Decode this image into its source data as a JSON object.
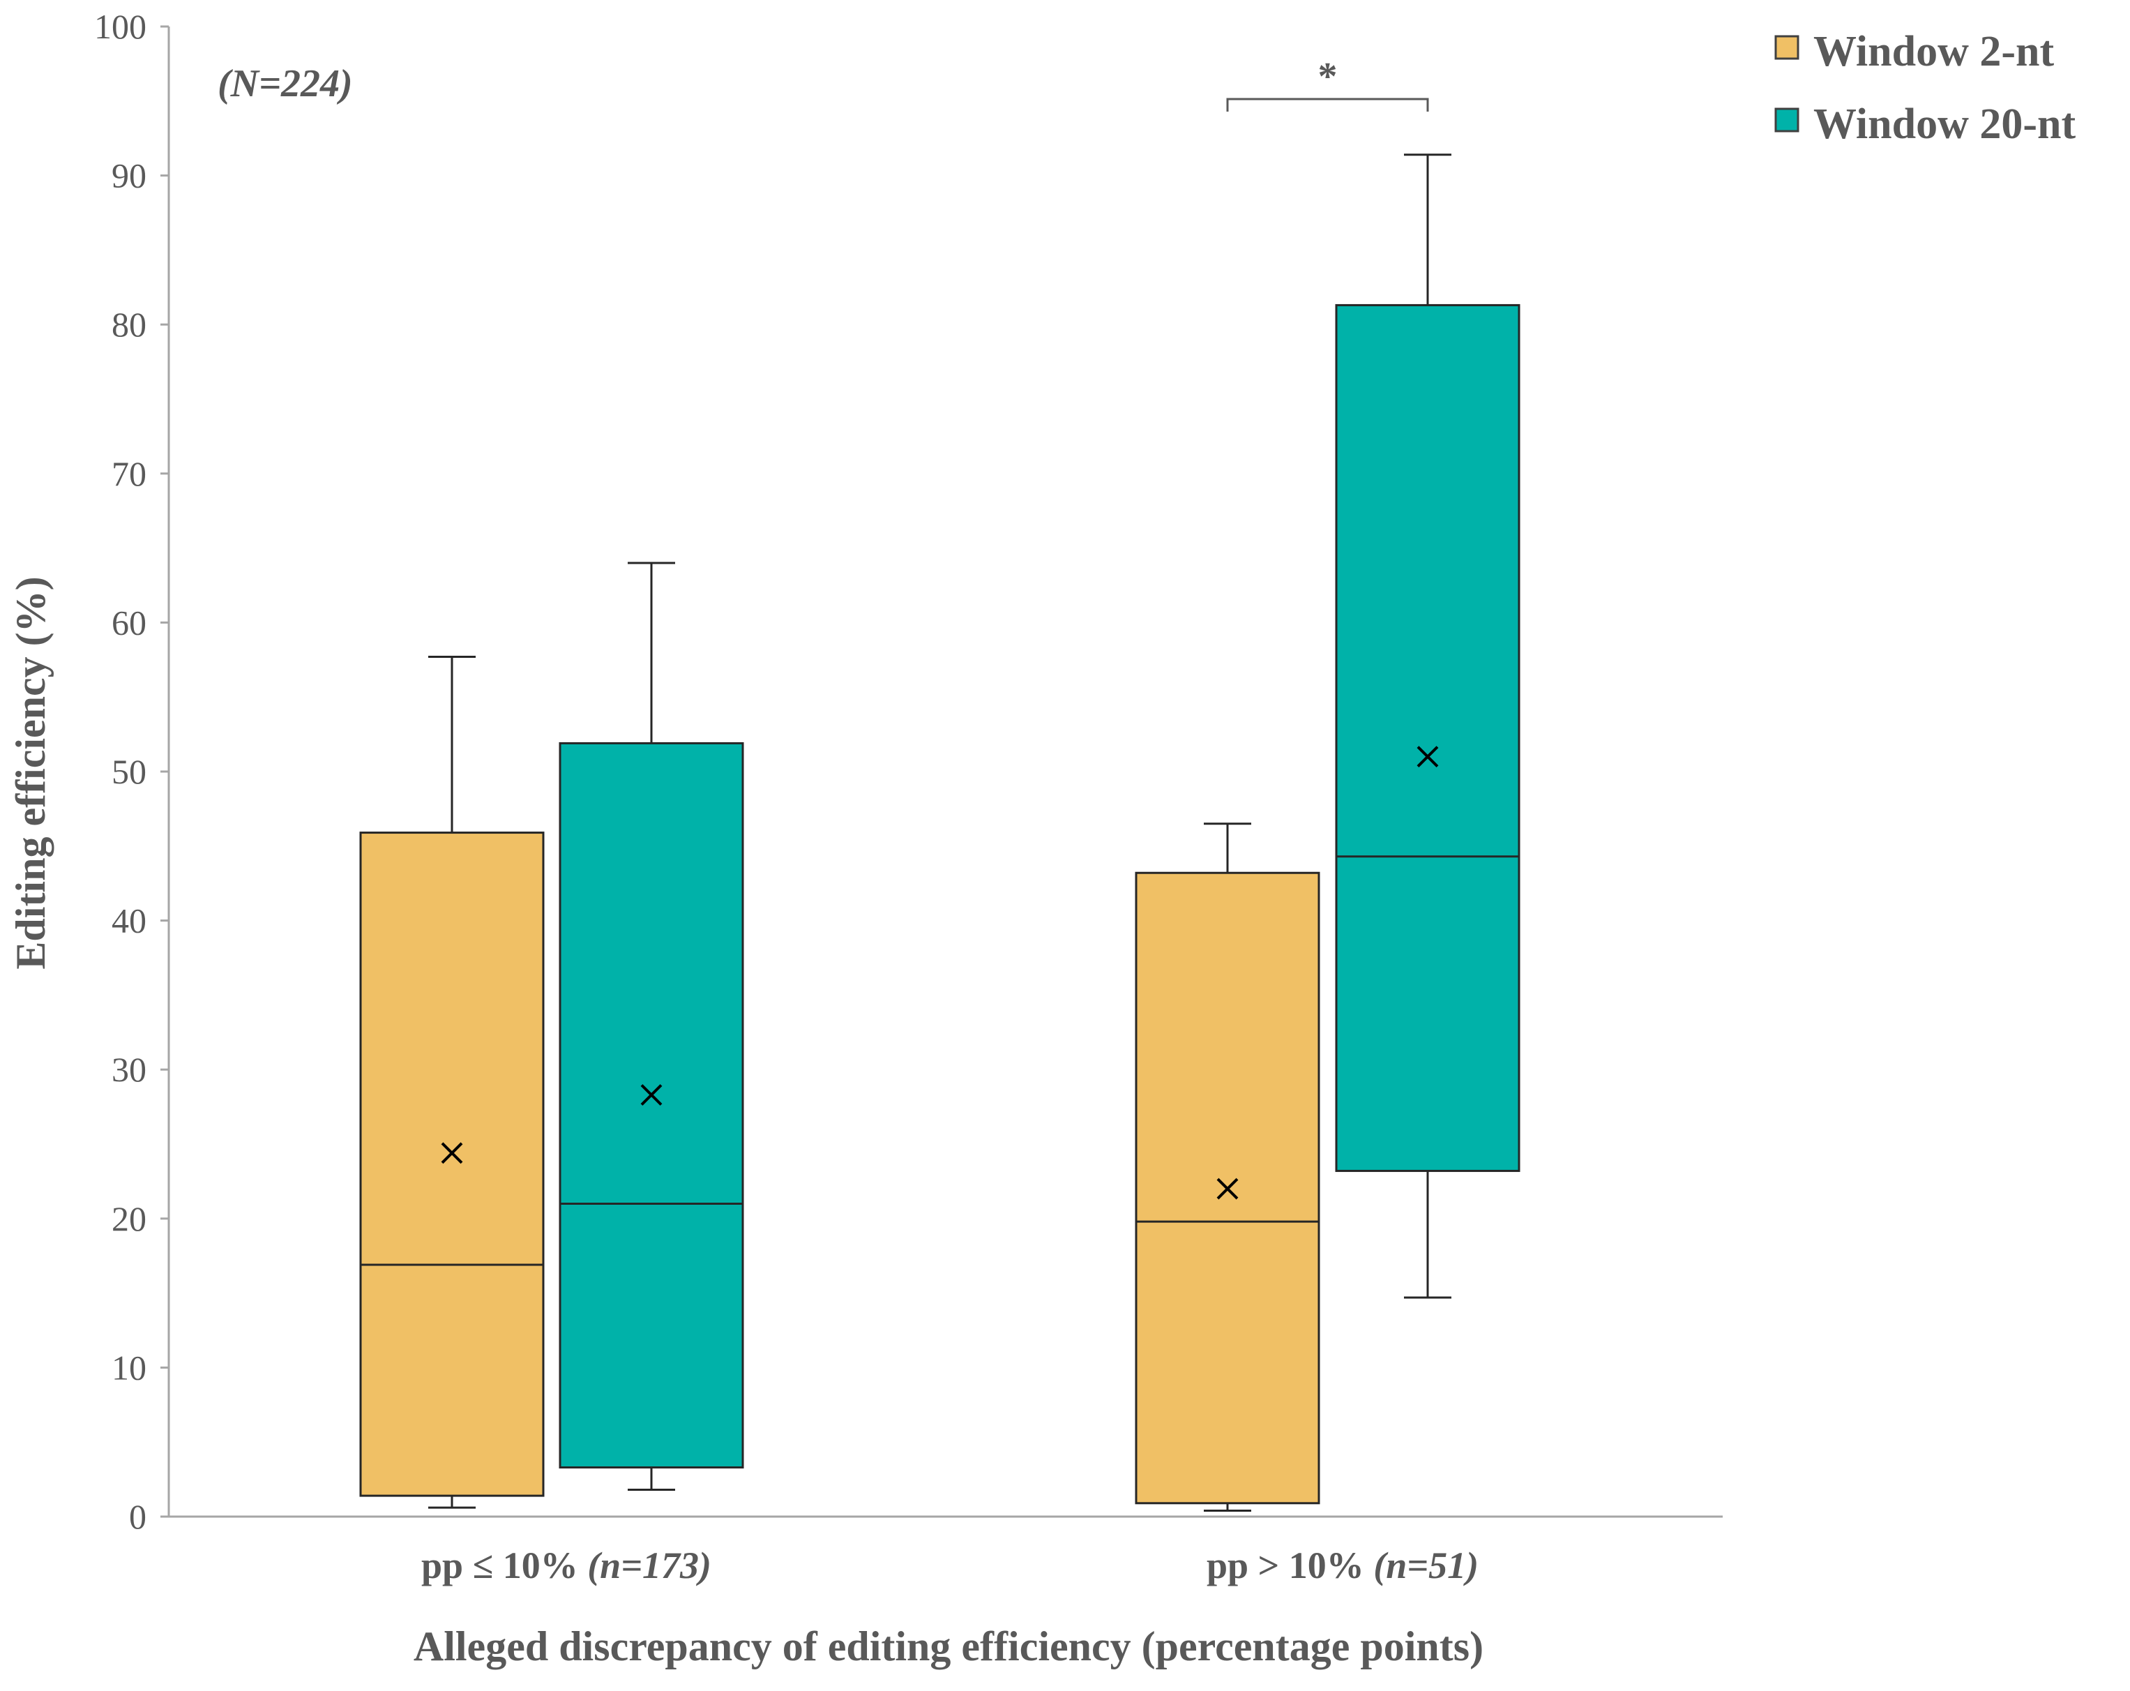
{
  "chart_data": {
    "type": "boxplot",
    "title": "",
    "annotation": "(N=224)",
    "xlabel": "Alleged discrepancy  of editing efficiency (percentage points)",
    "ylabel": "Editing efficiency (%)",
    "ylim": [
      0,
      100
    ],
    "yticks": [
      0,
      10,
      20,
      30,
      40,
      50,
      60,
      70,
      80,
      90,
      100
    ],
    "grid": false,
    "legend_position": "top-right",
    "categories": [
      {
        "label": "pp ≤ 10% ",
        "n": "(n=173)"
      },
      {
        "label": "pp > 10% ",
        "n": "(n=51)"
      }
    ],
    "series": [
      {
        "name": "Window 2-nt",
        "color": "#F0C065",
        "boxes": [
          {
            "min": 0.6,
            "q1": 1.4,
            "median": 16.9,
            "q3": 45.9,
            "max": 57.7,
            "mean": 24.4
          },
          {
            "min": 0.4,
            "q1": 0.9,
            "median": 19.8,
            "q3": 43.2,
            "max": 46.5,
            "mean": 22.0
          }
        ]
      },
      {
        "name": "Window 20-nt",
        "color": "#00B2A9",
        "boxes": [
          {
            "min": 1.8,
            "q1": 3.3,
            "median": 21.0,
            "q3": 51.9,
            "max": 64.0,
            "mean": 28.3
          },
          {
            "min": 14.7,
            "q1": 23.2,
            "median": 44.3,
            "q3": 81.3,
            "max": 91.4,
            "mean": 51.0
          }
        ]
      }
    ],
    "significance": [
      {
        "category_index": 1,
        "label": "*"
      }
    ]
  }
}
